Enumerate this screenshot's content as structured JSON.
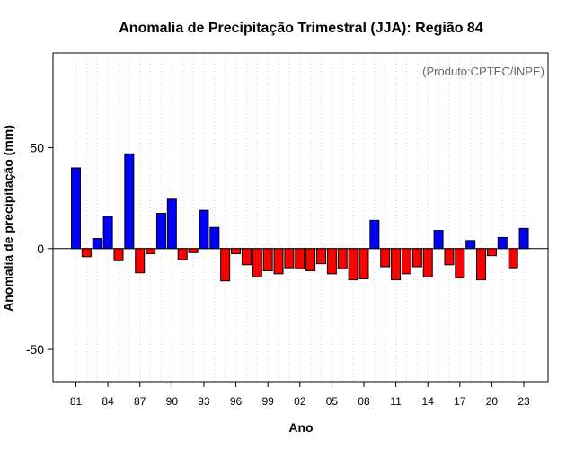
{
  "chart_data": {
    "type": "bar",
    "title": "Anomalia de Precipitação Trimestral (JJA): Região 84",
    "xlabel": "Ano",
    "ylabel": "Anomalia de precipitação (mm)",
    "credit": "(Produto:CPTEC/INPE)",
    "ylim": [
      -66,
      97
    ],
    "yticks": [
      -50,
      0,
      50
    ],
    "grid": "vertical dotted",
    "positive_color": "#0000ff",
    "negative_color": "#ff0000",
    "categories": [
      "81",
      "82",
      "83",
      "84",
      "85",
      "86",
      "87",
      "88",
      "89",
      "90",
      "91",
      "92",
      "93",
      "94",
      "95",
      "96",
      "97",
      "98",
      "99",
      "00",
      "01",
      "02",
      "03",
      "04",
      "05",
      "06",
      "07",
      "08",
      "09",
      "10",
      "11",
      "12",
      "13",
      "14",
      "15",
      "16",
      "17",
      "18",
      "19",
      "20",
      "21",
      "22",
      "23"
    ],
    "xtick_labels": [
      "81",
      "84",
      "87",
      "90",
      "93",
      "96",
      "99",
      "02",
      "05",
      "08",
      "11",
      "14",
      "17",
      "20",
      "23"
    ],
    "values": [
      40,
      -4,
      5,
      16,
      -6,
      47,
      -12,
      -2.5,
      17.5,
      24.5,
      -5.5,
      -2,
      19,
      10.5,
      -16,
      -2.5,
      -8,
      -14,
      -11,
      -12.5,
      -9.5,
      -10,
      -11,
      -7.5,
      -12.5,
      -10,
      -15.5,
      -15,
      14,
      -9,
      -15.5,
      -12.5,
      -9,
      -14,
      9,
      -8,
      -14.5,
      4,
      -15.5,
      -3.5,
      5.5,
      -9.5,
      10
    ]
  }
}
